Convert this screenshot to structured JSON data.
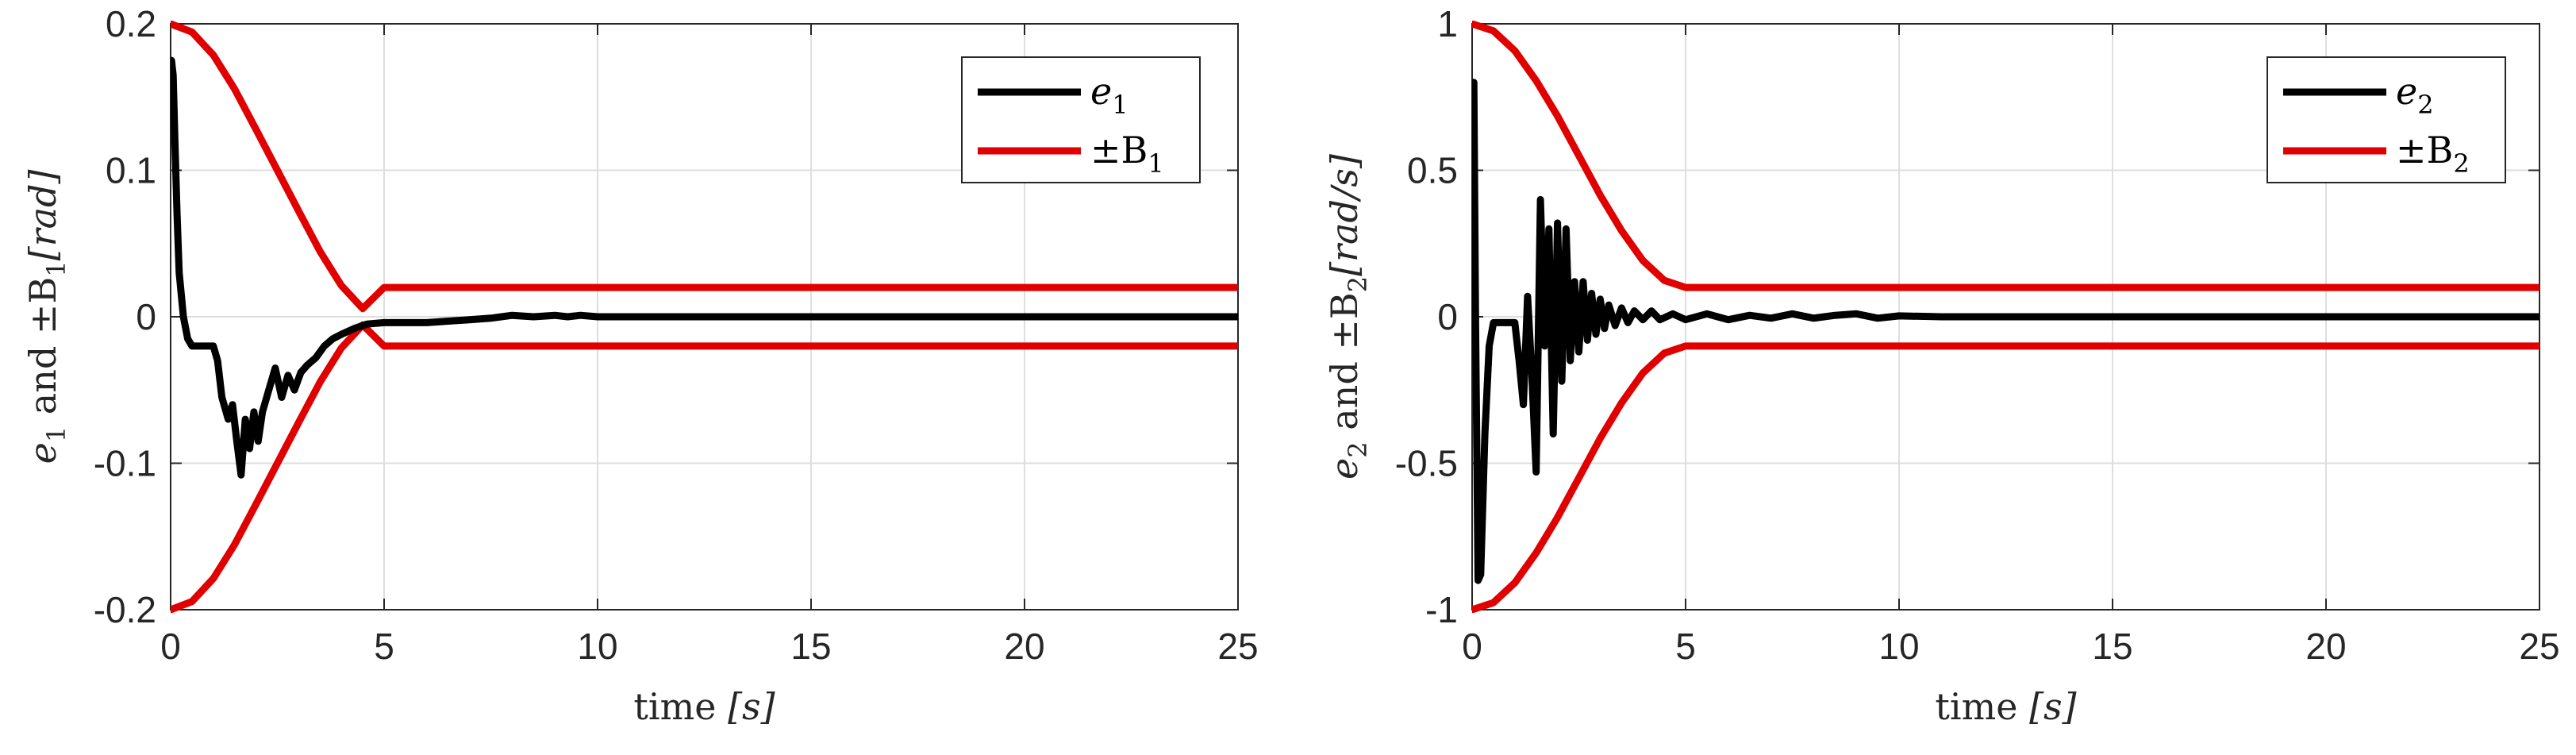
{
  "chart_data": [
    {
      "type": "line",
      "ylabel_main": "e",
      "ylabel_sub": "1",
      "ylabel_mid": " and ±B",
      "ylabel_sub2": "1",
      "ylabel_unit": "[rad]",
      "xlabel_main": "time ",
      "xlabel_unit": "[s]",
      "xlim": [
        0,
        25
      ],
      "ylim": [
        -0.2,
        0.2
      ],
      "xticks": [
        0,
        5,
        10,
        15,
        20,
        25
      ],
      "xtick_labels": [
        "0",
        "5",
        "10",
        "15",
        "20",
        "25"
      ],
      "yticks": [
        0.2,
        0.1,
        0,
        -0.1,
        -0.2
      ],
      "ytick_labels": [
        "0.2",
        "0.1",
        "0",
        "-0.1",
        "-0.2"
      ],
      "grid": true,
      "legend_position": "top-right",
      "legend": [
        {
          "sym": "e",
          "sub": "1",
          "color": "#000000"
        },
        {
          "sym": "±B",
          "sub": "1",
          "color": "#e00000"
        }
      ],
      "series": [
        {
          "color": "#000000",
          "x": [
            0,
            0.02,
            0.06,
            0.1,
            0.15,
            0.2,
            0.3,
            0.4,
            0.5,
            0.6,
            0.8,
            1.0,
            1.1,
            1.2,
            1.35,
            1.45,
            1.55,
            1.65,
            1.75,
            1.85,
            1.95,
            2.05,
            2.15,
            2.3,
            2.45,
            2.6,
            2.75,
            2.9,
            3.05,
            3.2,
            3.4,
            3.6,
            3.8,
            4.0,
            4.3,
            4.6,
            5.0,
            5.5,
            6.0,
            6.5,
            7.0,
            7.5,
            8.0,
            8.5,
            9.0,
            9.3,
            9.6,
            10.0,
            11.0,
            12.0,
            15.0,
            20.0,
            25.0
          ],
          "y": [
            0.162,
            0.175,
            0.165,
            0.12,
            0.07,
            0.03,
            0.0,
            -0.015,
            -0.02,
            -0.02,
            -0.02,
            -0.02,
            -0.03,
            -0.055,
            -0.07,
            -0.06,
            -0.085,
            -0.108,
            -0.07,
            -0.09,
            -0.065,
            -0.085,
            -0.065,
            -0.05,
            -0.035,
            -0.055,
            -0.04,
            -0.05,
            -0.038,
            -0.033,
            -0.028,
            -0.02,
            -0.015,
            -0.012,
            -0.008,
            -0.005,
            -0.004,
            -0.004,
            -0.004,
            -0.003,
            -0.002,
            -0.001,
            0.001,
            0.0,
            0.001,
            0.0,
            0.001,
            0.0,
            0.0,
            0.0,
            0.0,
            0.0,
            0.0
          ]
        },
        {
          "color": "#e00000",
          "x": [
            0,
            0.5,
            1.0,
            1.5,
            2.0,
            2.5,
            3.0,
            3.5,
            4.0,
            4.5,
            5.0,
            10.0,
            15.0,
            20.0,
            25.0
          ],
          "y": [
            0.2,
            0.1944,
            0.1787,
            0.1554,
            0.1279,
            0.1,
            0.0721,
            0.0446,
            0.0213,
            0.0056,
            0.02,
            0.02,
            0.02,
            0.02,
            0.02
          ]
        },
        {
          "color": "#e00000",
          "x": [
            0,
            0.5,
            1.0,
            1.5,
            2.0,
            2.5,
            3.0,
            3.5,
            4.0,
            4.5,
            5.0,
            10.0,
            15.0,
            20.0,
            25.0
          ],
          "y": [
            -0.2,
            -0.1944,
            -0.1787,
            -0.1554,
            -0.1279,
            -0.1,
            -0.0721,
            -0.0446,
            -0.0213,
            -0.0056,
            -0.02,
            -0.02,
            -0.02,
            -0.02,
            -0.02
          ]
        }
      ]
    },
    {
      "type": "line",
      "ylabel_main": "e",
      "ylabel_sub": "2",
      "ylabel_mid": " and ±B",
      "ylabel_sub2": "2",
      "ylabel_unit": "[rad/s]",
      "xlabel_main": "time ",
      "xlabel_unit": "[s]",
      "xlim": [
        0,
        25
      ],
      "ylim": [
        -1,
        1
      ],
      "xticks": [
        0,
        5,
        10,
        15,
        20,
        25
      ],
      "xtick_labels": [
        "0",
        "5",
        "10",
        "15",
        "20",
        "25"
      ],
      "yticks": [
        1,
        0.5,
        0,
        -0.5,
        -1
      ],
      "ytick_labels": [
        "1",
        "0.5",
        "0",
        "-0.5",
        "-1"
      ],
      "grid": true,
      "legend_position": "top-right",
      "legend": [
        {
          "sym": "e",
          "sub": "2",
          "color": "#000000"
        },
        {
          "sym": "±B",
          "sub": "2",
          "color": "#e00000"
        }
      ],
      "series": [
        {
          "color": "#000000",
          "x": [
            0,
            0.04,
            0.08,
            0.14,
            0.2,
            0.3,
            0.4,
            0.5,
            0.6,
            0.8,
            1.0,
            1.1,
            1.2,
            1.3,
            1.4,
            1.5,
            1.6,
            1.7,
            1.8,
            1.9,
            2.0,
            2.1,
            2.2,
            2.3,
            2.4,
            2.5,
            2.6,
            2.7,
            2.8,
            2.9,
            3.0,
            3.1,
            3.2,
            3.35,
            3.5,
            3.65,
            3.8,
            4.0,
            4.2,
            4.4,
            4.7,
            5.0,
            5.5,
            6.0,
            6.5,
            7.0,
            7.5,
            8.0,
            8.5,
            9.0,
            9.5,
            10.0,
            11.0,
            12.0,
            15.0,
            20.0,
            25.0
          ],
          "y": [
            0.0,
            0.8,
            0.0,
            -0.9,
            -0.88,
            -0.4,
            -0.1,
            -0.02,
            -0.02,
            -0.02,
            -0.02,
            -0.15,
            -0.3,
            0.07,
            -0.2,
            -0.53,
            0.4,
            -0.1,
            0.3,
            -0.4,
            0.32,
            -0.22,
            0.3,
            -0.15,
            0.12,
            -0.12,
            0.12,
            -0.08,
            0.08,
            -0.06,
            0.06,
            -0.04,
            0.04,
            -0.03,
            0.03,
            -0.02,
            0.02,
            -0.01,
            0.02,
            -0.01,
            0.01,
            -0.01,
            0.01,
            -0.01,
            0.005,
            -0.005,
            0.01,
            -0.005,
            0.005,
            0.01,
            -0.005,
            0.003,
            0.0,
            0.0,
            0.0,
            0.0,
            0.0
          ]
        },
        {
          "color": "#e00000",
          "x": [
            0,
            0.5,
            1.0,
            1.5,
            2.0,
            2.5,
            3.0,
            3.5,
            4.0,
            4.5,
            5.0,
            10.0,
            15.0,
            20.0,
            25.0
          ],
          "y": [
            1.0,
            0.976,
            0.908,
            0.806,
            0.685,
            0.55,
            0.415,
            0.294,
            0.192,
            0.124,
            0.1,
            0.1,
            0.1,
            0.1,
            0.1
          ]
        },
        {
          "color": "#e00000",
          "x": [
            0,
            0.5,
            1.0,
            1.5,
            2.0,
            2.5,
            3.0,
            3.5,
            4.0,
            4.5,
            5.0,
            10.0,
            15.0,
            20.0,
            25.0
          ],
          "y": [
            -1.0,
            -0.976,
            -0.908,
            -0.806,
            -0.685,
            -0.55,
            -0.415,
            -0.294,
            -0.192,
            -0.124,
            -0.1,
            -0.1,
            -0.1,
            -0.1,
            -0.1
          ]
        }
      ]
    }
  ]
}
